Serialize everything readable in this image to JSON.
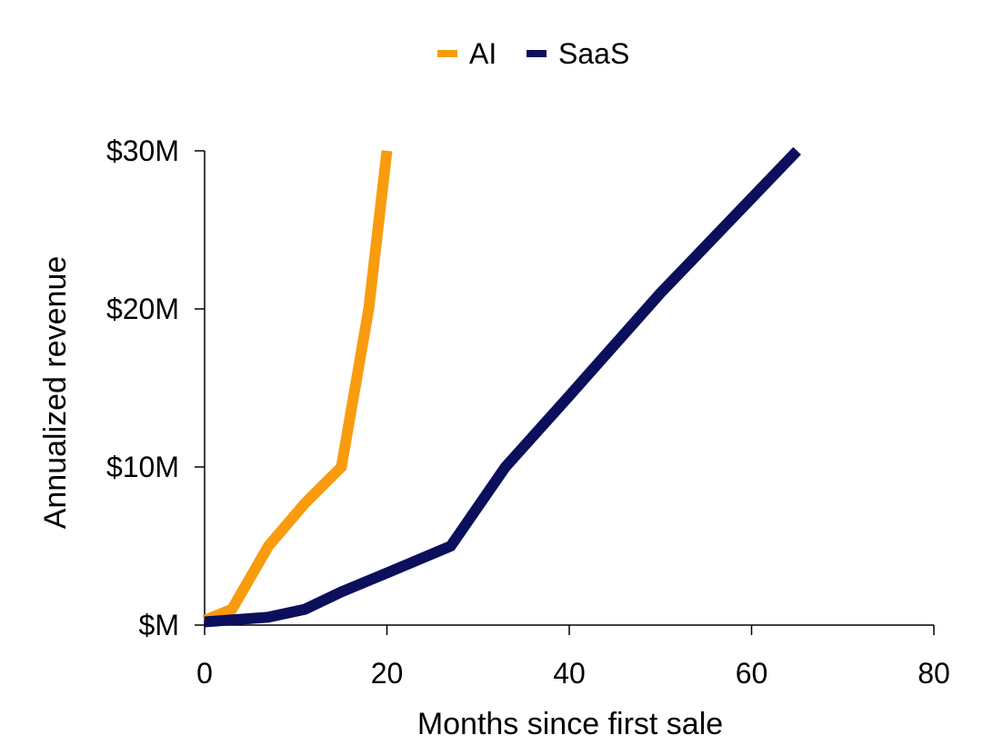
{
  "chart_data": {
    "type": "line",
    "xlabel": "Months since first sale",
    "ylabel": "Annualized revenue",
    "xlim": [
      0,
      80
    ],
    "ylim": [
      0,
      30
    ],
    "x_ticks": [
      0,
      20,
      40,
      60,
      80
    ],
    "x_tick_labels": [
      "0",
      "20",
      "40",
      "60",
      "80"
    ],
    "y_ticks": [
      0,
      10,
      20,
      30
    ],
    "y_tick_labels": [
      "$M",
      "$10M",
      "$20M",
      "$30M"
    ],
    "grid": false,
    "legend_position": "top-center",
    "series": [
      {
        "name": "AI",
        "color": "#F89C0E",
        "points": [
          [
            0,
            0.3
          ],
          [
            3,
            1.0
          ],
          [
            7,
            5.0
          ],
          [
            11,
            7.7
          ],
          [
            15,
            10.0
          ],
          [
            18,
            20.0
          ],
          [
            20,
            30.0
          ]
        ]
      },
      {
        "name": "SaaS",
        "color": "#0B0F5C",
        "points": [
          [
            0,
            0.2
          ],
          [
            7,
            0.5
          ],
          [
            11,
            1.0
          ],
          [
            15,
            2.1
          ],
          [
            20,
            3.3
          ],
          [
            27,
            5.0
          ],
          [
            33,
            10.0
          ],
          [
            40,
            14.5
          ],
          [
            50,
            21.0
          ],
          [
            60,
            27.0
          ],
          [
            65,
            30.0
          ]
        ]
      }
    ]
  }
}
